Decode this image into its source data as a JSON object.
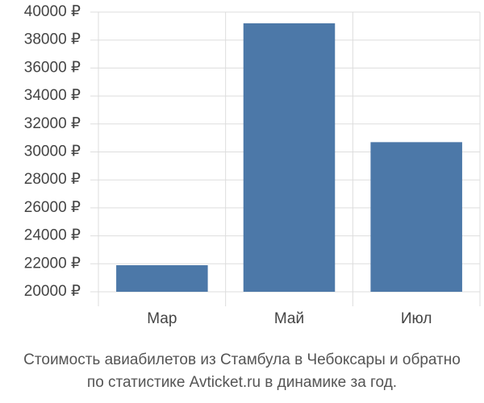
{
  "chart_data": {
    "type": "bar",
    "title": [
      "Стоимость авиабилетов из Стамбула в Чебоксары и обратно",
      "по статистике Avticket.ru в динамике за год."
    ],
    "categories": [
      "Мар",
      "Май",
      "Июл"
    ],
    "values": [
      21900,
      39200,
      30700
    ],
    "color": "#4c78a8",
    "ylim": [
      20000,
      40000
    ],
    "yticks": [
      {
        "value": 20000,
        "label": "20000 ₽"
      },
      {
        "value": 22000,
        "label": "22000 ₽"
      },
      {
        "value": 24000,
        "label": "24000 ₽"
      },
      {
        "value": 26000,
        "label": "26000 ₽"
      },
      {
        "value": 28000,
        "label": "28000 ₽"
      },
      {
        "value": 30000,
        "label": "30000 ₽"
      },
      {
        "value": 32000,
        "label": "32000 ₽"
      },
      {
        "value": 34000,
        "label": "34000 ₽"
      },
      {
        "value": 36000,
        "label": "36000 ₽"
      },
      {
        "value": 38000,
        "label": "38000 ₽"
      },
      {
        "value": 40000,
        "label": "40000 ₽"
      }
    ],
    "grid": true
  }
}
